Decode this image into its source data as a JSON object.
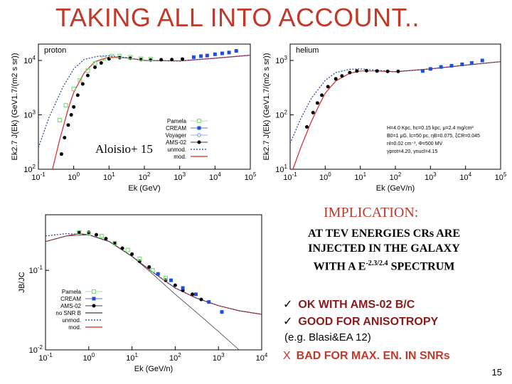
{
  "slide": {
    "title": "TAKING ALL INTO ACCOUNT..",
    "citation": "Aloisio+ 15",
    "page_number": "15"
  },
  "implication": {
    "heading": "IMPLICATION:",
    "line1": "AT TEV ENERGIES CRs ARE",
    "line2": "INJECTED IN THE GALAXY",
    "line3_pre": "WITH A E",
    "line3_sup": "-2.3/2.4",
    "line3_post": " SPECTRUM",
    "check1": "OK WITH AMS-02 B/C",
    "check2": "GOOD FOR ANISOTROPY",
    "reference": "(e.g. Blasi&EA 12)",
    "cross": "BAD FOR MAX. EN. IN SNRs",
    "check_mark": "✓",
    "cross_mark": "X"
  },
  "chart_data": [
    {
      "type": "line",
      "panel_label": "proton",
      "xlabel": "E_k (GeV)",
      "ylabel": "E_k^2.7 J(E_k) (GeV^1.7/(m^2 s sr))",
      "xscale": "log",
      "yscale": "log",
      "xlim": [
        0.1,
        100000
      ],
      "ylim": [
        100,
        20000
      ],
      "xticks": [
        "10-1",
        "100",
        "101",
        "102",
        "103",
        "104",
        "105"
      ],
      "yticks": [
        "102",
        "103",
        "104"
      ],
      "legend": [
        "Pamela",
        "CREAM",
        "Voyager",
        "AMS-02",
        "unmod.",
        "mod."
      ],
      "series": [
        {
          "name": "mod.",
          "color": "#d62728",
          "x": [
            0.25,
            0.4,
            0.7,
            1,
            2,
            4,
            10,
            30,
            100,
            1000,
            10000,
            100000
          ],
          "y": [
            100,
            350,
            1300,
            2600,
            6000,
            9500,
            11500,
            11200,
            10000,
            9800,
            11000,
            12500
          ]
        },
        {
          "name": "unmod.",
          "color": "#1f3f9f",
          "x": [
            0.1,
            0.2,
            0.5,
            1,
            2,
            5,
            10,
            30,
            100,
            1000,
            10000,
            100000
          ],
          "y": [
            250,
            900,
            3300,
            7000,
            10500,
            12000,
            12200,
            11300,
            10000,
            9800,
            11000,
            12500
          ]
        },
        {
          "name": "AMS-02",
          "color": "#000000",
          "x": [
            0.45,
            0.55,
            0.7,
            0.85,
            1,
            1.3,
            1.8,
            2.5,
            4,
            6,
            10,
            20,
            40,
            80,
            150,
            300,
            600,
            1200
          ],
          "y": [
            190,
            380,
            650,
            1000,
            1400,
            2300,
            3700,
            5300,
            7500,
            9000,
            10700,
            11300,
            11000,
            10400,
            10200,
            10300,
            10400,
            10600
          ]
        },
        {
          "name": "CREAM",
          "color": "#1f4fd6",
          "x": [
            2500,
            4000,
            6000,
            10000,
            16000,
            25000,
            40000
          ],
          "y": [
            11500,
            12000,
            12300,
            13000,
            13500,
            14000,
            15000
          ]
        },
        {
          "name": "Pamela",
          "color": "#7fdc7f",
          "x": [
            0.4,
            0.6,
            1,
            1.5,
            2.5,
            4,
            7,
            12,
            20,
            40,
            80,
            150
          ],
          "y": [
            800,
            1500,
            3000,
            4300,
            6500,
            8800,
            11000,
            12000,
            12000,
            11500,
            10800,
            10600
          ]
        }
      ]
    },
    {
      "type": "line",
      "panel_label": "helium",
      "xlabel": "E_k (GeV/n)",
      "ylabel": "E_k^2.7 J(E_k) (GeV^1.7/(m^2 s sr))",
      "xscale": "log",
      "yscale": "log",
      "xlim": [
        0.1,
        100000
      ],
      "ylim": [
        10,
        2000
      ],
      "xticks": [
        "10-1",
        "100",
        "101",
        "102",
        "103",
        "104",
        "105"
      ],
      "yticks": [
        "101",
        "102",
        "103"
      ],
      "annotations": [
        "H=4.0 Kpc, hc=0.15 kpc, μ=2.4 mg/cm²",
        "B0=1 μG, lc=50 pc, ηB=0.075, ξCR=0.045",
        "nl=0.02 cm⁻³, Φ=500 MV",
        "γprot=4.20, γnucl=4.15"
      ],
      "series": [
        {
          "name": "mod.",
          "color": "#d62728",
          "x": [
            0.12,
            0.2,
            0.4,
            0.7,
            1,
            2,
            5,
            10,
            30,
            100,
            1000,
            10000,
            100000
          ],
          "y": [
            10,
            25,
            75,
            160,
            250,
            420,
            580,
            640,
            640,
            620,
            700,
            820,
            950
          ]
        },
        {
          "name": "unmod.",
          "color": "#1f3f9f",
          "x": [
            0.1,
            0.2,
            0.4,
            1,
            2,
            5,
            10,
            30,
            100,
            1000,
            10000,
            100000
          ],
          "y": [
            30,
            85,
            200,
            430,
            600,
            690,
            700,
            660,
            620,
            700,
            820,
            950
          ]
        },
        {
          "name": "AMS-02",
          "color": "#000000",
          "x": [
            0.3,
            0.45,
            0.6,
            0.8,
            1.2,
            2,
            3,
            5,
            8,
            15,
            30,
            60,
            120
          ],
          "y": [
            60,
            110,
            165,
            230,
            330,
            460,
            520,
            600,
            640,
            650,
            640,
            630,
            630
          ]
        },
        {
          "name": "CREAM",
          "color": "#1f4fd6",
          "x": [
            600,
            1000,
            2000,
            4000,
            8000,
            15000,
            30000
          ],
          "y": [
            640,
            700,
            760,
            800,
            850,
            900,
            1000
          ]
        }
      ]
    },
    {
      "type": "line",
      "xlabel": "E_k (GeV/n)",
      "ylabel": "J_B/J_C",
      "xscale": "log",
      "yscale": "log",
      "xlim": [
        0.1,
        10000
      ],
      "ylim": [
        0.01,
        0.5
      ],
      "xticks": [
        "10-1",
        "100",
        "101",
        "102",
        "103",
        "104"
      ],
      "yticks": [
        "10-1",
        "10-2"
      ],
      "legend": [
        "Pamela",
        "CREAM",
        "AMS-02",
        "no SNR B",
        "unmod.",
        "mod."
      ],
      "series": [
        {
          "name": "mod.",
          "color": "#d62728",
          "x": [
            0.1,
            0.3,
            0.6,
            1,
            3,
            10,
            30,
            100,
            300,
            1000,
            3000,
            10000
          ],
          "y": [
            0.23,
            0.27,
            0.29,
            0.28,
            0.23,
            0.15,
            0.095,
            0.06,
            0.045,
            0.036,
            0.031,
            0.028
          ]
        },
        {
          "name": "unmod.",
          "color": "#1f3f9f",
          "x": [
            0.1,
            0.3,
            1,
            3,
            10,
            30,
            100,
            300,
            1000,
            3000,
            10000
          ],
          "y": [
            0.27,
            0.29,
            0.28,
            0.23,
            0.15,
            0.095,
            0.06,
            0.045,
            0.036,
            0.031,
            0.028
          ]
        },
        {
          "name": "no SNR B",
          "color": "#444444",
          "x": [
            0.1,
            0.3,
            1,
            3,
            10,
            30,
            100,
            300,
            1000,
            3000,
            10000
          ],
          "y": [
            0.23,
            0.27,
            0.28,
            0.23,
            0.15,
            0.09,
            0.05,
            0.03,
            0.017,
            0.01,
            0.006
          ]
        },
        {
          "name": "AMS-02",
          "color": "#000000",
          "x": [
            0.6,
            1,
            1.5,
            2.5,
            4,
            6,
            10,
            15,
            25,
            40,
            60,
            100,
            150,
            250,
            400
          ],
          "y": [
            0.3,
            0.3,
            0.28,
            0.25,
            0.22,
            0.19,
            0.16,
            0.13,
            0.11,
            0.09,
            0.075,
            0.065,
            0.056,
            0.05,
            0.043
          ]
        },
        {
          "name": "CREAM",
          "color": "#1f4fd6",
          "x": [
            40,
            80,
            150,
            300,
            600,
            1200
          ],
          "y": [
            0.09,
            0.075,
            0.06,
            0.05,
            0.04,
            0.03
          ]
        },
        {
          "name": "Pamela",
          "color": "#7fdc7f",
          "x": [
            0.6,
            1,
            2,
            4,
            8,
            15,
            30,
            60
          ],
          "y": [
            0.3,
            0.29,
            0.27,
            0.22,
            0.18,
            0.14,
            0.1,
            0.08
          ]
        }
      ]
    }
  ]
}
